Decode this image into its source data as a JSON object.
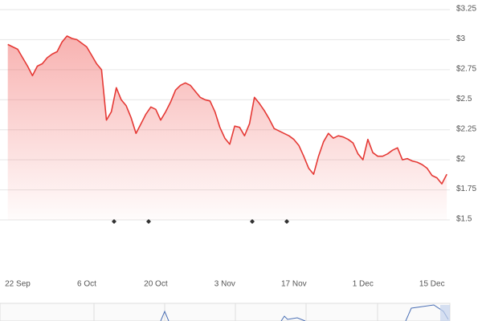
{
  "chart_data": {
    "type": "area",
    "x": [
      "20 Sep",
      "21 Sep",
      "22 Sep",
      "23 Sep",
      "24 Sep",
      "25 Sep",
      "26 Sep",
      "27 Sep",
      "28 Sep",
      "29 Sep",
      "30 Sep",
      "1 Oct",
      "2 Oct",
      "3 Oct",
      "4 Oct",
      "5 Oct",
      "6 Oct",
      "7 Oct",
      "8 Oct",
      "9 Oct",
      "10 Oct",
      "11 Oct",
      "12 Oct",
      "13 Oct",
      "14 Oct",
      "15 Oct",
      "16 Oct",
      "17 Oct",
      "18 Oct",
      "19 Oct",
      "20 Oct",
      "21 Oct",
      "22 Oct",
      "23 Oct",
      "24 Oct",
      "25 Oct",
      "26 Oct",
      "27 Oct",
      "28 Oct",
      "29 Oct",
      "30 Oct",
      "31 Oct",
      "1 Nov",
      "2 Nov",
      "3 Nov",
      "4 Nov",
      "5 Nov",
      "6 Nov",
      "7 Nov",
      "8 Nov",
      "9 Nov",
      "10 Nov",
      "11 Nov",
      "12 Nov",
      "13 Nov",
      "14 Nov",
      "15 Nov",
      "16 Nov",
      "17 Nov",
      "18 Nov",
      "19 Nov",
      "20 Nov",
      "21 Nov",
      "22 Nov",
      "23 Nov",
      "24 Nov",
      "25 Nov",
      "26 Nov",
      "27 Nov",
      "28 Nov",
      "29 Nov",
      "30 Nov",
      "1 Dec",
      "2 Dec",
      "3 Dec",
      "4 Dec",
      "5 Dec",
      "6 Dec",
      "7 Dec",
      "8 Dec",
      "9 Dec",
      "10 Dec",
      "11 Dec",
      "12 Dec",
      "13 Dec",
      "14 Dec",
      "15 Dec",
      "16 Dec",
      "17 Dec",
      "18 Dec"
    ],
    "series": [
      {
        "color": "#e53935",
        "values": [
          2.96,
          2.94,
          2.92,
          2.85,
          2.78,
          2.7,
          2.78,
          2.8,
          2.85,
          2.88,
          2.9,
          2.98,
          3.03,
          3.01,
          3.0,
          2.97,
          2.94,
          2.87,
          2.8,
          2.75,
          2.33,
          2.4,
          2.6,
          2.5,
          2.45,
          2.35,
          2.22,
          2.3,
          2.38,
          2.44,
          2.42,
          2.33,
          2.4,
          2.48,
          2.58,
          2.62,
          2.64,
          2.62,
          2.57,
          2.52,
          2.5,
          2.49,
          2.4,
          2.27,
          2.18,
          2.13,
          2.28,
          2.27,
          2.2,
          2.3,
          2.52,
          2.47,
          2.41,
          2.34,
          2.26,
          2.24,
          2.22,
          2.2,
          2.17,
          2.12,
          2.03,
          1.93,
          1.88,
          2.03,
          2.15,
          2.22,
          2.18,
          2.2,
          2.19,
          2.17,
          2.14,
          2.05,
          2.0,
          2.17,
          2.06,
          2.03,
          2.03,
          2.05,
          2.08,
          2.1,
          2.0,
          2.01,
          1.99,
          1.98,
          1.96,
          1.93,
          1.87,
          1.85,
          1.8,
          1.88
        ]
      }
    ],
    "xticks": [
      "22 Sep",
      "6 Oct",
      "20 Oct",
      "3 Nov",
      "17 Nov",
      "1 Dec",
      "15 Dec"
    ],
    "ylim": [
      1.5,
      3.25
    ],
    "yticks": [
      {
        "value": 1.5,
        "label": "$1.5"
      },
      {
        "value": 1.75,
        "label": "$1.75"
      },
      {
        "value": 2,
        "label": "$2"
      },
      {
        "value": 2.25,
        "label": "$2.25"
      },
      {
        "value": 2.5,
        "label": "$2.5"
      },
      {
        "value": 2.75,
        "label": "$2.75"
      },
      {
        "value": 3,
        "label": "$3"
      },
      {
        "value": 3.25,
        "label": "$3.25"
      }
    ],
    "grid": true
  }
}
